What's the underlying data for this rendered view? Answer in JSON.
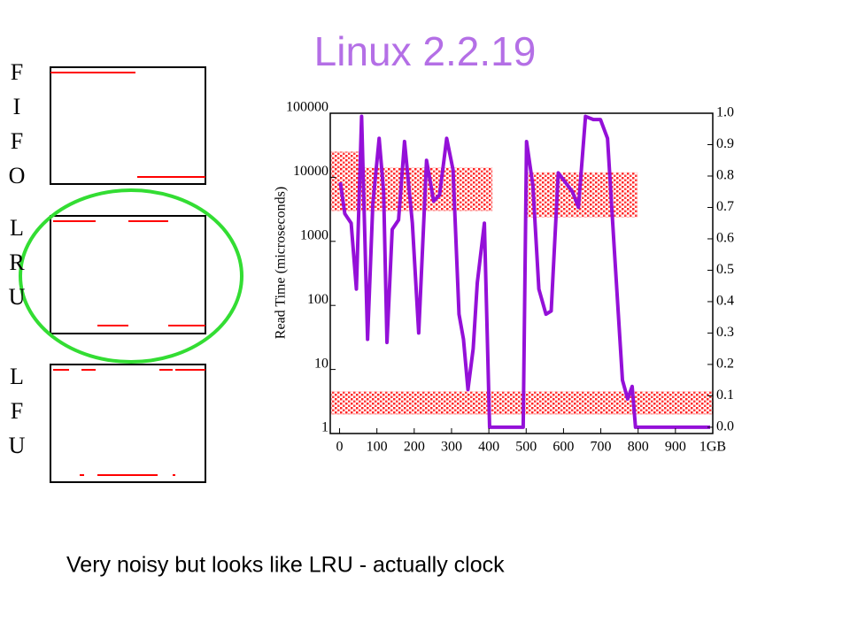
{
  "title": "Linux 2.2.19",
  "caption": "Very noisy but looks like LRU - actually clock",
  "policies": [
    "FIFO",
    "LRU",
    "LFU"
  ],
  "chart_data": {
    "type": "line",
    "ylabel": "Read Time (microseconds)",
    "xlim": [
      -25,
      1000
    ],
    "xticks": [
      0,
      100,
      200,
      300,
      400,
      500,
      600,
      700,
      800,
      900,
      {
        "value": 1000,
        "label": "1GB"
      }
    ],
    "ylim": [
      1,
      100000
    ],
    "yscale": "log",
    "yticks": [
      1,
      10,
      100,
      1000,
      10000,
      100000
    ],
    "y2lim": [
      -0.02,
      1
    ],
    "y2ticks": [
      {
        "value": 0,
        "label": "0.0"
      },
      0.1,
      0.2,
      0.3,
      0.4,
      0.5,
      0.6,
      0.7,
      0.8,
      0.9,
      {
        "value": 1,
        "label": "1.0"
      }
    ],
    "series": [
      {
        "type": "band",
        "color": "#ff0000",
        "x0": [
          -23,
          -23,
          499,
          -23
        ],
        "x1": [
          409,
          60,
          798,
          1000
        ],
        "low": [
          3000,
          14000,
          2400,
          2
        ],
        "high": [
          14000,
          25000,
          11800,
          4.5
        ]
      },
      {
        "type": "line",
        "color": "#9410d8",
        "axis": "y2",
        "x": [
          2,
          14,
          31,
          45,
          59,
          75,
          89,
          106,
          118,
          127,
          141,
          158,
          174,
          195,
          212,
          233,
          252,
          268,
          287,
          304,
          320,
          332,
          344,
          358,
          369,
          388,
          402,
          492,
          501,
          518,
          534,
          553,
          567,
          586,
          605,
          624,
          640,
          659,
          680,
          699,
          718,
          736,
          758,
          772,
          784,
          793,
          993
        ],
        "values": [
          0.78,
          0.68,
          0.65,
          0.44,
          0.99,
          0.28,
          0.71,
          0.92,
          0.75,
          0.27,
          0.63,
          0.66,
          0.91,
          0.65,
          0.3,
          0.85,
          0.72,
          0.74,
          0.92,
          0.82,
          0.36,
          0.28,
          0.12,
          0.25,
          0.46,
          0.65,
          0,
          0,
          0.91,
          0.77,
          0.44,
          0.36,
          0.37,
          0.81,
          0.78,
          0.75,
          0.7,
          0.99,
          0.98,
          0.98,
          0.92,
          0.57,
          0.15,
          0.09,
          0.13,
          0,
          0
        ]
      }
    ]
  }
}
